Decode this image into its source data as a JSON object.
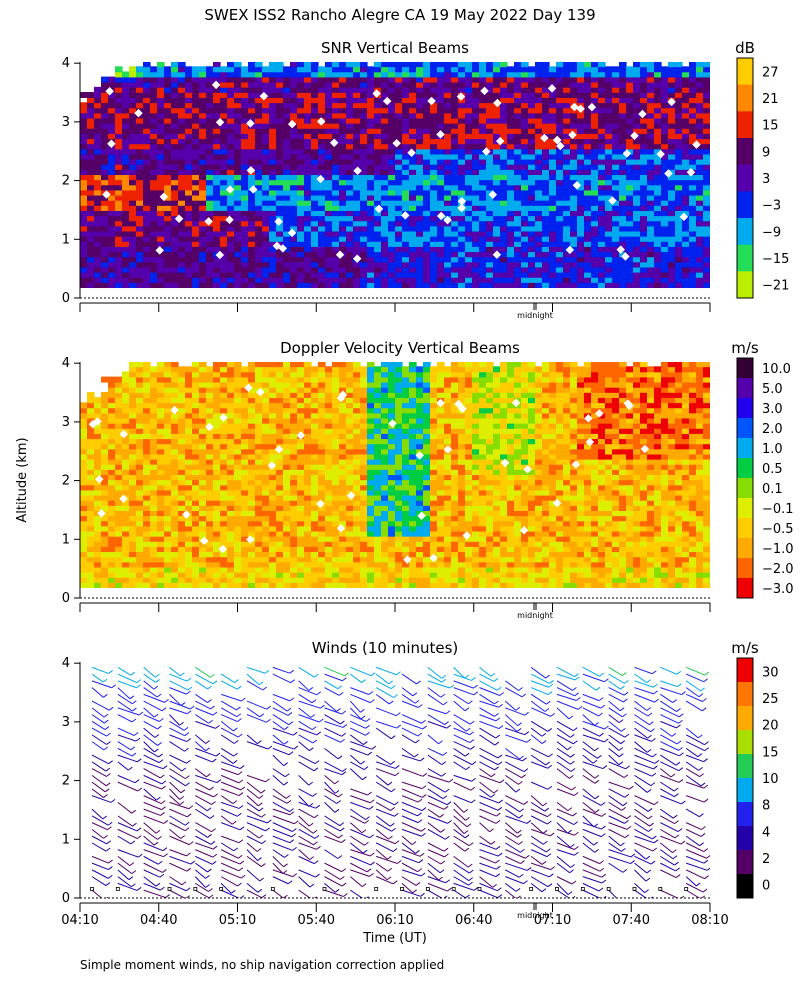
{
  "title": "SWEX ISS2 Rancho Alegre CA  19 May 2022 Day 139",
  "footnote": "Simple moment winds, no ship navigation correction applied",
  "shared_axes": {
    "y_label": "Altitude (km)",
    "x_label": "Time (UT)",
    "x_ticks": [
      "04:10",
      "04:40",
      "05:10",
      "05:40",
      "06:10",
      "06:40",
      "07:10",
      "07:40",
      "08:10"
    ],
    "midnight_label": "midnight"
  },
  "chart_data": [
    {
      "type": "heatmap",
      "title": "SNR Vertical Beams",
      "colorbar_unit": "dB",
      "colorbar_labels": [
        "27",
        "21",
        "15",
        "9",
        "3",
        "−3",
        "−9",
        "−15",
        "−21"
      ],
      "colors": [
        "#ffcc00",
        "#ff8800",
        "#ee2200",
        "#550066",
        "#5500aa",
        "#0022ee",
        "#00aaee",
        "#22dd55",
        "#bbee00"
      ],
      "y_ticks": [
        "0",
        "1",
        "2",
        "3",
        "4"
      ],
      "xlim": [
        "04:10",
        "08:10"
      ],
      "ylim": [
        0,
        4
      ]
    },
    {
      "type": "heatmap",
      "title": "Doppler Velocity Vertical Beams",
      "colorbar_unit": "m/s",
      "colorbar_labels": [
        "10.0",
        "5.0",
        "3.0",
        "2.0",
        "1.0",
        "0.5",
        "0.1",
        "−0.1",
        "−0.5",
        "−1.0",
        "−2.0",
        "−3.0"
      ],
      "colors": [
        "#330033",
        "#5500aa",
        "#2200ee",
        "#0055ff",
        "#00aaee",
        "#00cc44",
        "#88dd00",
        "#ddee00",
        "#ffcc00",
        "#ffaa00",
        "#ff6600",
        "#ee0000"
      ],
      "y_ticks": [
        "0",
        "1",
        "2",
        "3",
        "4"
      ],
      "xlim": [
        "04:10",
        "08:10"
      ],
      "ylim": [
        0,
        4
      ]
    },
    {
      "type": "wind_barbs",
      "title": "Winds (10 minutes)",
      "colorbar_unit": "m/s",
      "colorbar_labels": [
        "30",
        "25",
        "20",
        "15",
        "10",
        "8",
        "4",
        "2",
        "0"
      ],
      "colors": [
        "#ee0000",
        "#ff7700",
        "#ffaa00",
        "#aadd00",
        "#22cc55",
        "#00aaee",
        "#2222ee",
        "#2200aa",
        "#550066",
        "#000000"
      ],
      "y_ticks": [
        "0",
        "1",
        "2",
        "3",
        "4"
      ],
      "xlim": [
        "04:10",
        "08:10"
      ],
      "ylim": [
        0,
        4
      ]
    }
  ]
}
